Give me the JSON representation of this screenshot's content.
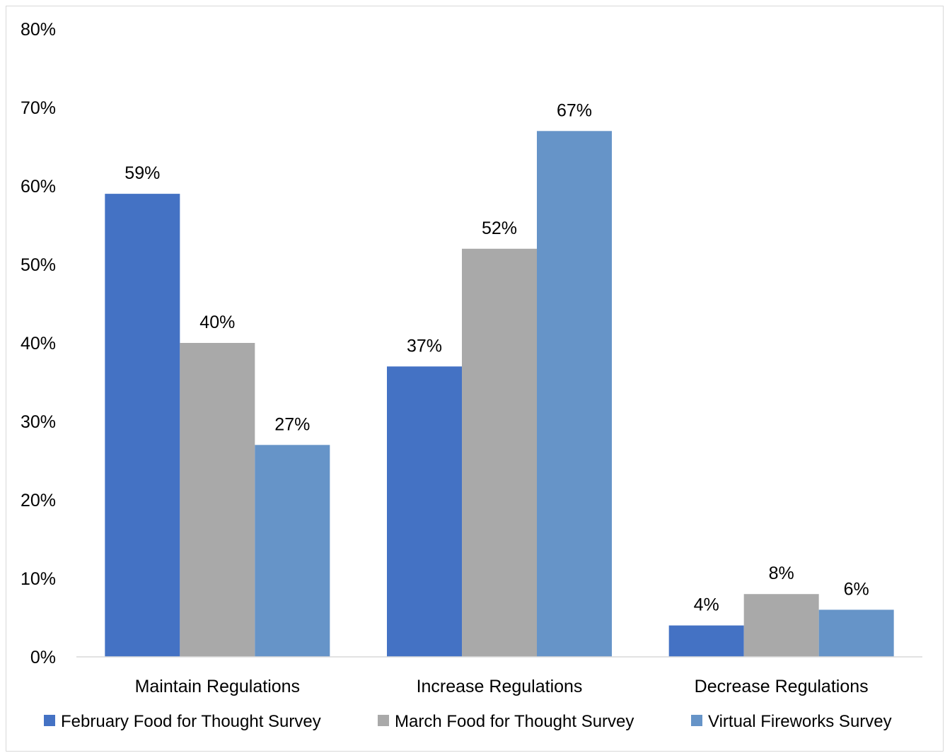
{
  "chart_data": {
    "type": "bar",
    "title": "",
    "xlabel": "",
    "ylabel": "",
    "categories": [
      "Maintain Regulations",
      "Increase Regulations",
      "Decrease Regulations"
    ],
    "series": [
      {
        "name": "February Food for Thought Survey",
        "values": [
          59,
          37,
          4
        ],
        "color": "#4472c4"
      },
      {
        "name": "March Food for Thought Survey",
        "values": [
          40,
          52,
          8
        ],
        "color": "#a9a9a9"
      },
      {
        "name": "Virtual Fireworks Survey",
        "values": [
          27,
          67,
          6
        ],
        "color": "#6694c8"
      }
    ],
    "value_suffix": "%",
    "ylim": [
      0,
      80
    ],
    "yticks": [
      0,
      10,
      20,
      30,
      40,
      50,
      60,
      70,
      80
    ],
    "ytick_labels": [
      "0%",
      "10%",
      "20%",
      "30%",
      "40%",
      "50%",
      "60%",
      "70%",
      "80%"
    ],
    "data_labels": [
      [
        "59%",
        "37%",
        "4%"
      ],
      [
        "40%",
        "52%",
        "8%"
      ],
      [
        "27%",
        "67%",
        "6%"
      ]
    ],
    "grid": false,
    "legend_position": "bottom",
    "axis_color": "#d9d9d9"
  }
}
